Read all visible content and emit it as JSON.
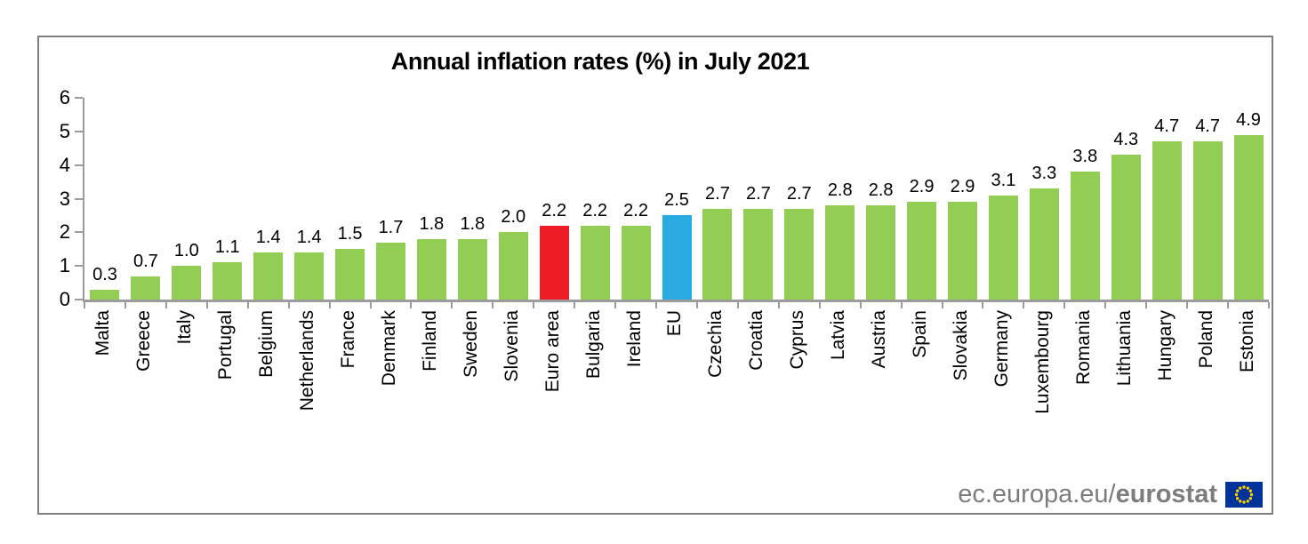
{
  "chart_data": {
    "type": "bar",
    "title": "Annual inflation rates (%) in July 2021",
    "categories": [
      "Malta",
      "Greece",
      "Italy",
      "Portugal",
      "Belgium",
      "Netherlands",
      "France",
      "Denmark",
      "Finland",
      "Sweden",
      "Slovenia",
      "Euro area",
      "Bulgaria",
      "Ireland",
      "EU",
      "Czechia",
      "Croatia",
      "Cyprus",
      "Latvia",
      "Austria",
      "Spain",
      "Slovakia",
      "Germany",
      "Luxembourg",
      "Romania",
      "Lithuania",
      "Hungary",
      "Poland",
      "Estonia"
    ],
    "values": [
      0.3,
      0.7,
      1.0,
      1.1,
      1.4,
      1.4,
      1.5,
      1.7,
      1.8,
      1.8,
      2.0,
      2.2,
      2.2,
      2.2,
      2.5,
      2.7,
      2.7,
      2.7,
      2.8,
      2.8,
      2.9,
      2.9,
      3.1,
      3.3,
      3.8,
      4.3,
      4.7,
      4.7,
      4.9
    ],
    "value_labels": [
      "0.3",
      "0.7",
      "1.0",
      "1.1",
      "1.4",
      "1.4",
      "1.5",
      "1.7",
      "1.8",
      "1.8",
      "2.0",
      "2.2",
      "2.2",
      "2.2",
      "2.5",
      "2.7",
      "2.7",
      "2.7",
      "2.8",
      "2.8",
      "2.9",
      "2.9",
      "3.1",
      "3.3",
      "3.8",
      "4.3",
      "4.7",
      "4.7",
      "4.9"
    ],
    "ylim": [
      0,
      6
    ],
    "ytick_labels": [
      "0",
      "1",
      "2",
      "3",
      "4",
      "5",
      "6"
    ],
    "grid": false,
    "legend": "none",
    "colors": {
      "default_bar": "#92ce53",
      "highlights": [
        {
          "category": "Euro area",
          "color": "#ee1c25"
        },
        {
          "category": "EU",
          "color": "#29abe2"
        }
      ]
    },
    "axis_color": "#9c9c9c"
  },
  "footer": {
    "url_regular": "ec.europa.eu/",
    "url_bold": "eurostat",
    "logo": "eu-flag-icon",
    "flag_colors": {
      "background": "#003399",
      "stars": "#ffcc00"
    }
  }
}
